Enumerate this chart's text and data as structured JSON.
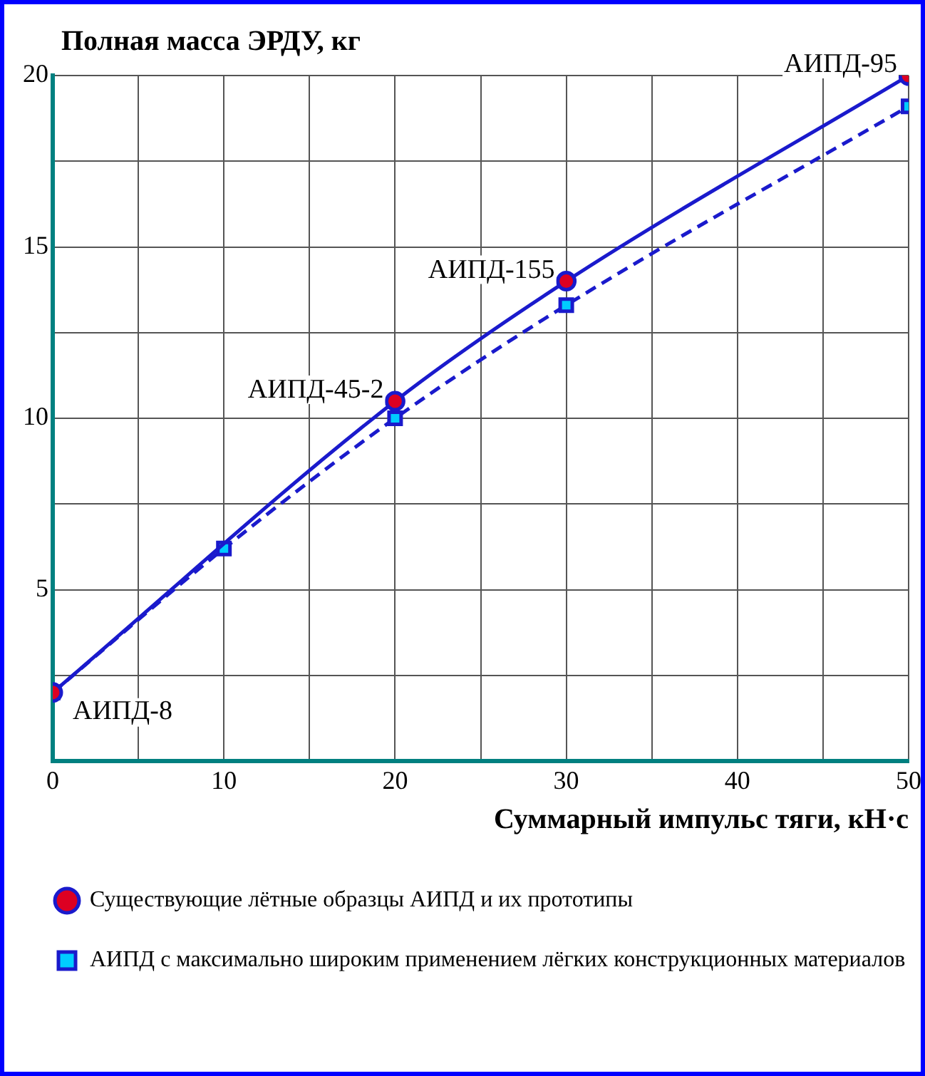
{
  "chart_data": {
    "type": "line",
    "ylabel": "Полная масса ЭРДУ, кг",
    "xlabel": "Суммарный импульс тяги, кН·с",
    "xlim": [
      0,
      50
    ],
    "ylim": [
      0,
      20
    ],
    "xticks": [
      0,
      {
        "value": 5,
        "label": null
      },
      10,
      {
        "value": 15,
        "label": null
      },
      20,
      {
        "value": 25,
        "label": null
      },
      30,
      {
        "value": 35,
        "label": null
      },
      40,
      {
        "value": 45,
        "label": null
      },
      50
    ],
    "yticks": [
      {
        "value": 0,
        "label": null
      },
      {
        "value": 2.5,
        "label": null
      },
      5,
      {
        "value": 7.5,
        "label": null
      },
      10,
      {
        "value": 12.5,
        "label": null
      },
      15,
      {
        "value": 17.5,
        "label": null
      },
      20
    ],
    "grid": true,
    "legend": "bottom",
    "series": [
      {
        "name": "Существующие лётные образцы АИПД и их прототипы",
        "color": "#dd0022",
        "marker": "circle",
        "line_style": "solid",
        "x": [
          0,
          20,
          30,
          50
        ],
        "values": [
          2,
          10.5,
          14,
          20
        ]
      },
      {
        "name": "АИПД с максимально широким применением лёгких конструкционных материалов",
        "color": "#00ccff",
        "marker": "square",
        "line_style": "dashed",
        "x": [
          0,
          10,
          20,
          30,
          50
        ],
        "values": [
          2,
          6.2,
          10,
          13.3,
          19.1
        ]
      }
    ],
    "annotations": [
      {
        "text": "АИПД-8",
        "x": 0,
        "y": 2
      },
      {
        "text": "АИПД-45-2",
        "x": 20,
        "y": 10.5
      },
      {
        "text": "АИПД-155",
        "x": 30,
        "y": 14
      },
      {
        "text": "АИПД-95",
        "x": 50,
        "y": 20
      }
    ]
  }
}
